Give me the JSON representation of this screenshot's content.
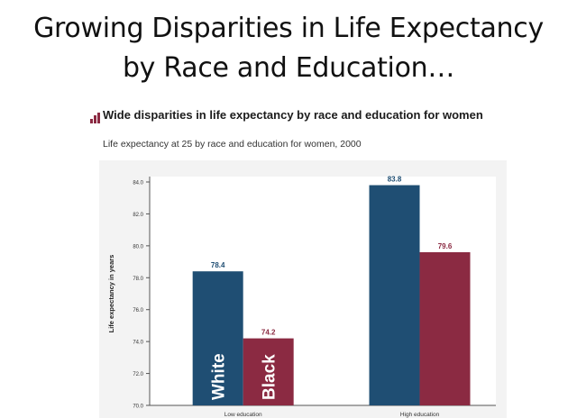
{
  "slide": {
    "title_line1": "Growing Disparities in Life Expectancy",
    "title_line2": "by Race and Education…"
  },
  "chart": {
    "icon": "bar-chart-icon",
    "title": "Wide disparities in life expectancy by race and education for women",
    "subtitle": "Life expectancy at 25 by race and education for women, 2000"
  },
  "chart_data": {
    "type": "bar",
    "categories": [
      "Low education",
      "High education"
    ],
    "series": [
      {
        "name": "White",
        "color": "#1f4e73",
        "values": [
          78.4,
          83.8
        ]
      },
      {
        "name": "Black",
        "color": "#8b2a42",
        "values": [
          74.2,
          79.6
        ]
      }
    ],
    "data_labels": [
      "78.4",
      "74.2",
      "83.8",
      "79.6"
    ],
    "ylabel": "Life expectancy in years",
    "ylim": [
      70,
      84
    ],
    "yticks": [
      "70.0",
      "72.0",
      "74.0",
      "76.0",
      "78.0",
      "80.0",
      "82.0",
      "84.0"
    ],
    "label_colors": {
      "White": "#1f4e73",
      "Black": "#8b2a42"
    },
    "grid": false,
    "legend": "none (series names written inside bars)"
  }
}
